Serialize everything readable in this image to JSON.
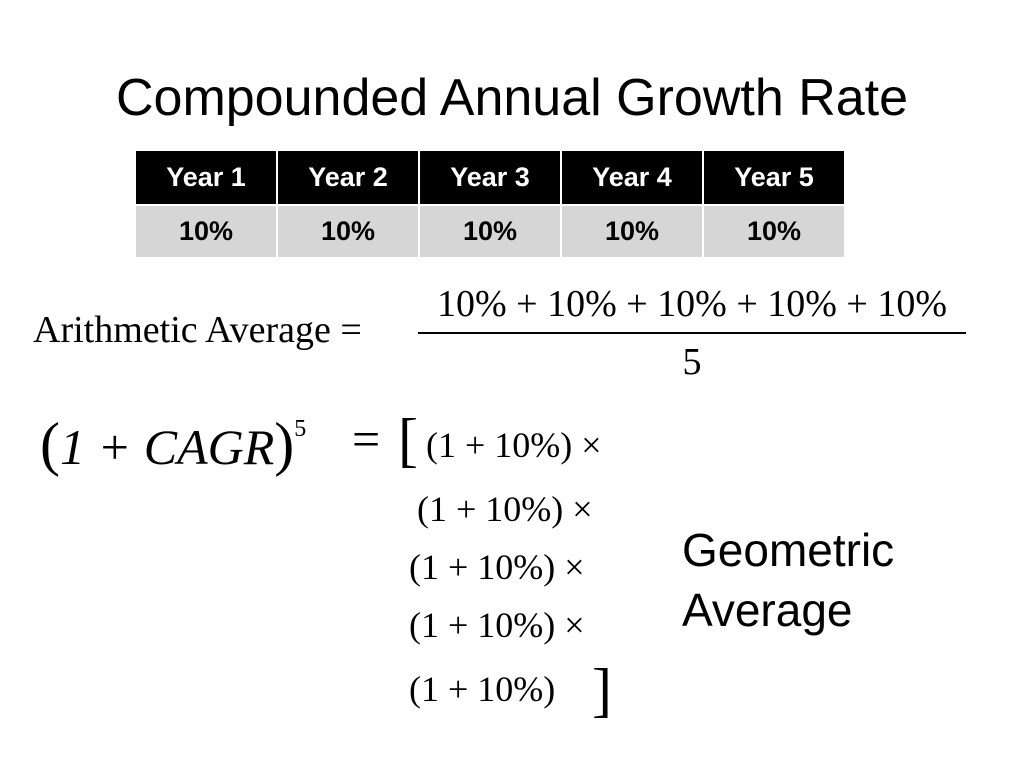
{
  "slide": {
    "title": "Compounded Annual Growth Rate"
  },
  "table": {
    "headers": [
      "Year 1",
      "Year 2",
      "Year 3",
      "Year 4",
      "Year 5"
    ],
    "values": [
      "10%",
      "10%",
      "10%",
      "10%",
      "10%"
    ]
  },
  "arithmetic": {
    "label": "Arithmetic Average =",
    "numerator": "10% + 10% + 10% + 10% + 10%",
    "denominator": "5"
  },
  "geometric": {
    "lhs_open": "(",
    "lhs_body": "1 + CAGR",
    "lhs_close": ")",
    "exponent": "5",
    "equals": "=",
    "bracket_open": "[",
    "bracket_close": "]",
    "terms": [
      "(1 + 10%) ×",
      "(1 + 10%) ×",
      "(1 + 10%) ×",
      "(1 + 10%) ×",
      "(1 + 10%)"
    ],
    "label_line1": "Geometric",
    "label_line2": "Average"
  }
}
